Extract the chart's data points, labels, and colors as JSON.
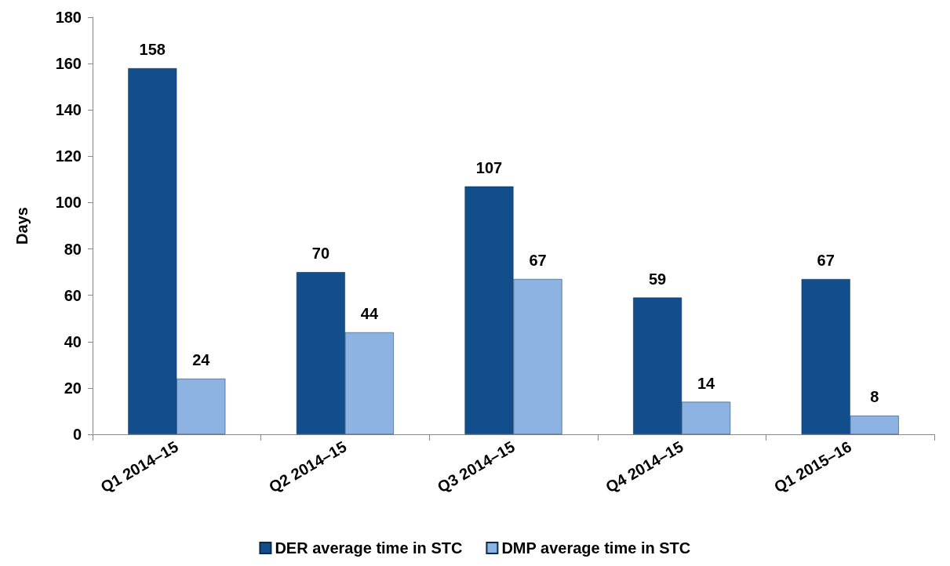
{
  "chart_data": {
    "type": "bar",
    "ylabel": "Days",
    "categories": [
      "Q1 2014–15",
      "Q2 2014–15",
      "Q3 2014–15",
      "Q4 2014–15",
      "Q1 2015–16"
    ],
    "series": [
      {
        "name": "DER average time in STC",
        "color": "#124e8c",
        "values": [
          158,
          70,
          107,
          59,
          67
        ]
      },
      {
        "name": "DMP average time in STC",
        "color": "#8db3e2",
        "values": [
          24,
          44,
          67,
          14,
          8
        ]
      }
    ],
    "ylim": [
      0,
      180
    ],
    "yticks": [
      0,
      20,
      40,
      60,
      80,
      100,
      120,
      140,
      160,
      180
    ],
    "grid": false,
    "legend": "bottom",
    "data_labels": true
  }
}
